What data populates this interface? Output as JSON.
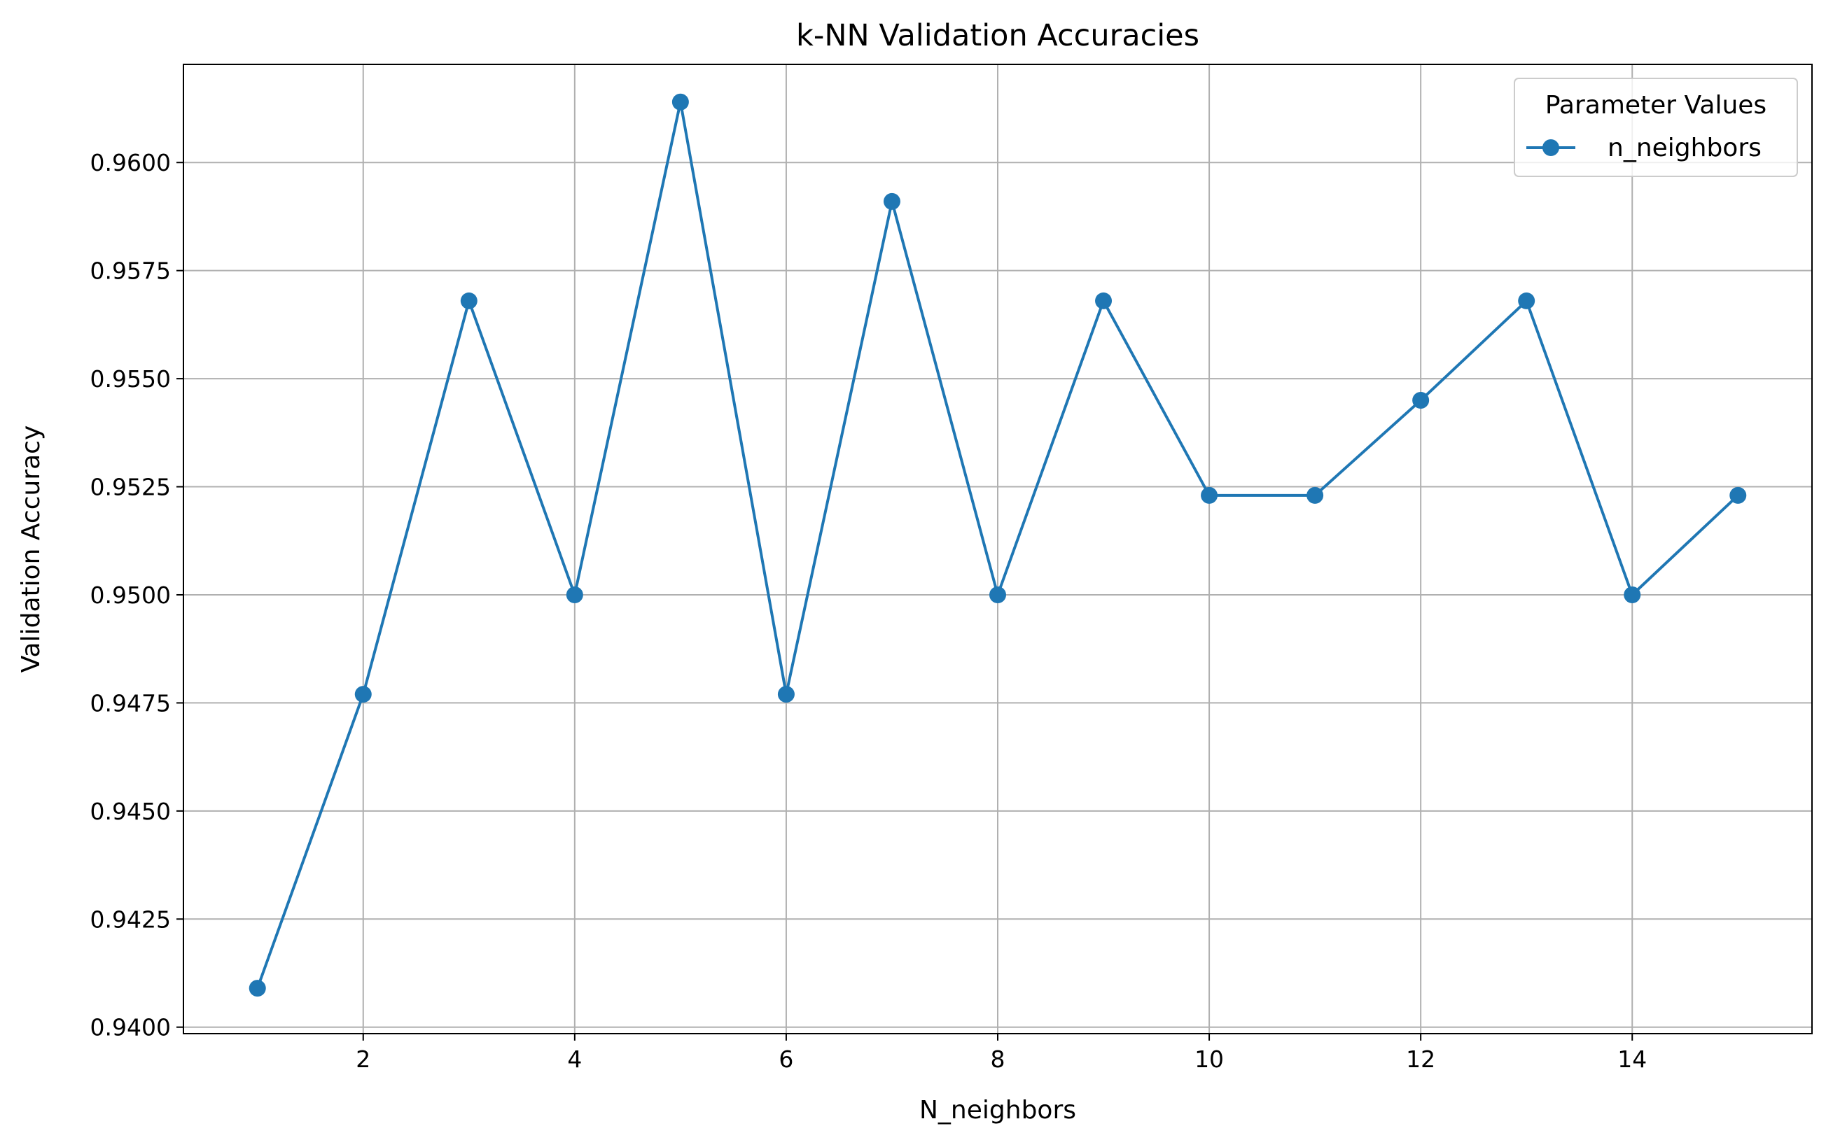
{
  "chart_data": {
    "type": "line",
    "title": "k-NN Validation Accuracies",
    "xlabel": "N_neighbors",
    "ylabel": "Validation Accuracy",
    "x": [
      1,
      2,
      3,
      4,
      5,
      6,
      7,
      8,
      9,
      10,
      11,
      12,
      13,
      14,
      15
    ],
    "series": [
      {
        "name": "n_neighbors",
        "color": "#1f77b4",
        "marker": "circle",
        "values": [
          0.9409,
          0.9477,
          0.9568,
          0.95,
          0.9614,
          0.9477,
          0.9591,
          0.95,
          0.9568,
          0.9523,
          0.9523,
          0.9545,
          0.9568,
          0.95,
          0.9523
        ]
      }
    ],
    "xlim": [
      0.3,
      15.7
    ],
    "ylim": [
      0.93985,
      0.96227
    ],
    "xticks": [
      2,
      4,
      6,
      8,
      10,
      12,
      14
    ],
    "xtick_labels": [
      "2",
      "4",
      "6",
      "8",
      "10",
      "12",
      "14"
    ],
    "yticks": [
      0.94,
      0.9425,
      0.945,
      0.9475,
      0.95,
      0.9525,
      0.955,
      0.9575,
      0.96
    ],
    "ytick_labels": [
      "0.9400",
      "0.9425",
      "0.9450",
      "0.9475",
      "0.9500",
      "0.9525",
      "0.9550",
      "0.9575",
      "0.9600"
    ],
    "grid": true,
    "legend": {
      "title": "Parameter Values",
      "position": "top-right"
    }
  }
}
